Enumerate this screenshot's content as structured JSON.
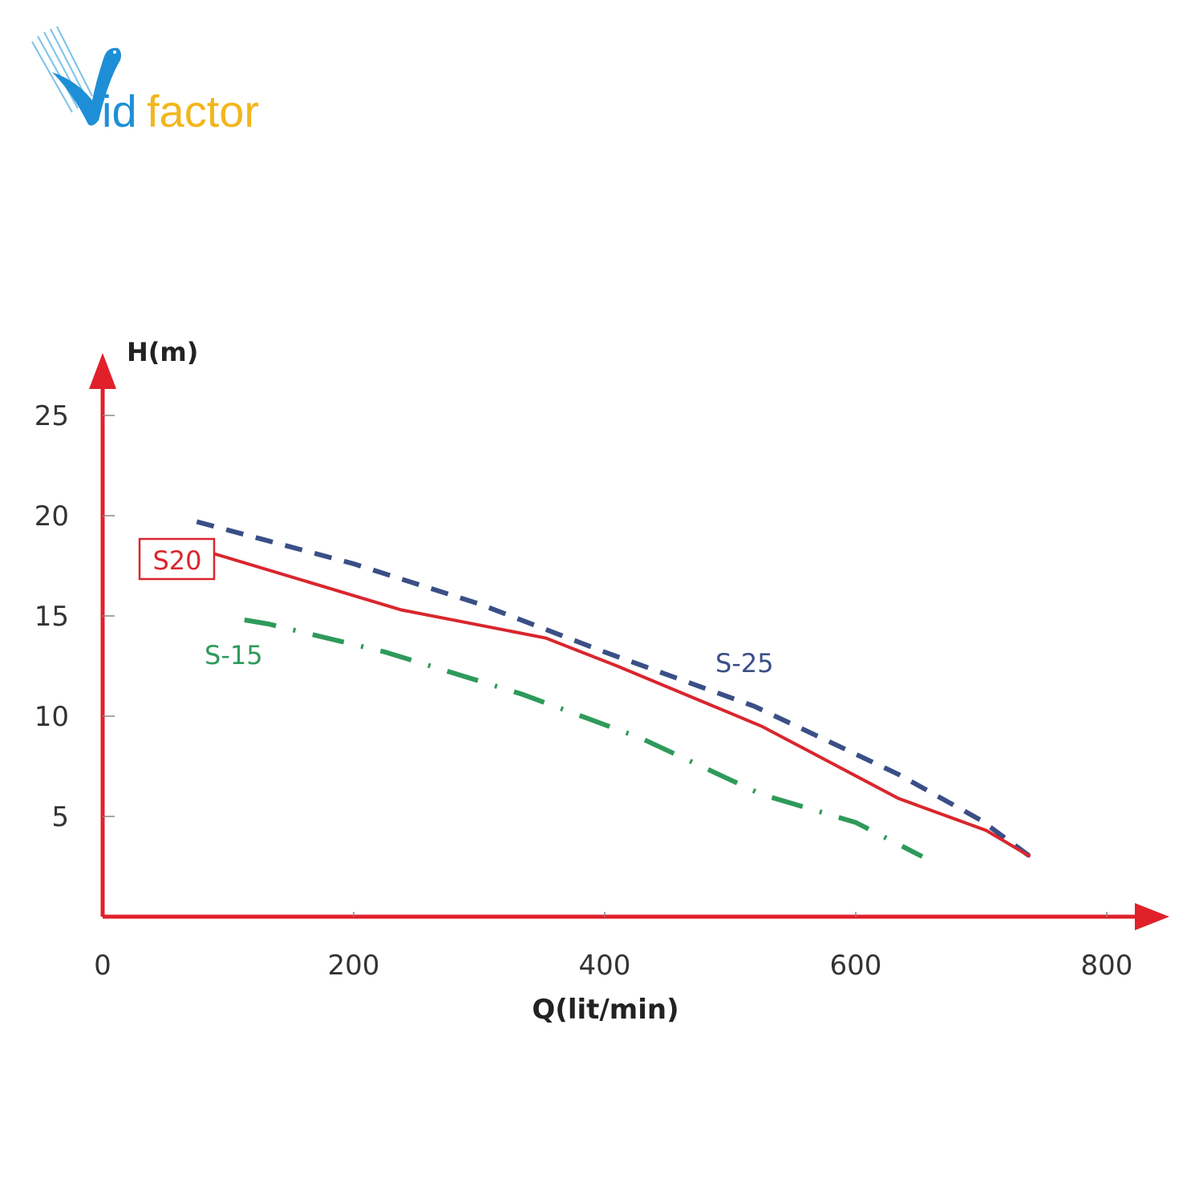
{
  "logo": {
    "text_v": "V",
    "text_id": "id",
    "text_factor": "factor",
    "full": "Vidfactor"
  },
  "chart_data": {
    "type": "line",
    "title": "",
    "xlabel": "Q(lit/min)",
    "ylabel": "H(m)",
    "xlim": [
      0,
      800
    ],
    "ylim": [
      0,
      25
    ],
    "xticks": [
      "0",
      "200",
      "400",
      "600",
      "800"
    ],
    "yticks": [
      "5",
      "10",
      "15",
      "20",
      "25"
    ],
    "grid": false,
    "axis_color": "#e0212b",
    "series": [
      {
        "name": "S-25",
        "label": "S-25",
        "color": "#3a4f86",
        "style": "dashed",
        "x": [
          75,
          200,
          300,
          400,
          519,
          634,
          700,
          739
        ],
        "y": [
          19.7,
          17.6,
          15.6,
          13.2,
          10.5,
          7.1,
          4.8,
          3.0
        ]
      },
      {
        "name": "S20",
        "label": "S20",
        "color": "#d9262e",
        "style": "solid",
        "x": [
          89,
          238,
          353,
          410,
          525,
          634,
          704,
          739
        ],
        "y": [
          18.1,
          15.3,
          13.9,
          12.5,
          9.5,
          5.9,
          4.3,
          3.0
        ]
      },
      {
        "name": "S-15",
        "label": "S-15",
        "color": "#2e9a5a",
        "style": "dashdot",
        "x": [
          113,
          132,
          225,
          334,
          429,
          525,
          600,
          653
        ],
        "y": [
          14.8,
          14.6,
          13.2,
          11.1,
          8.9,
          6.1,
          4.7,
          3.0
        ]
      }
    ]
  }
}
